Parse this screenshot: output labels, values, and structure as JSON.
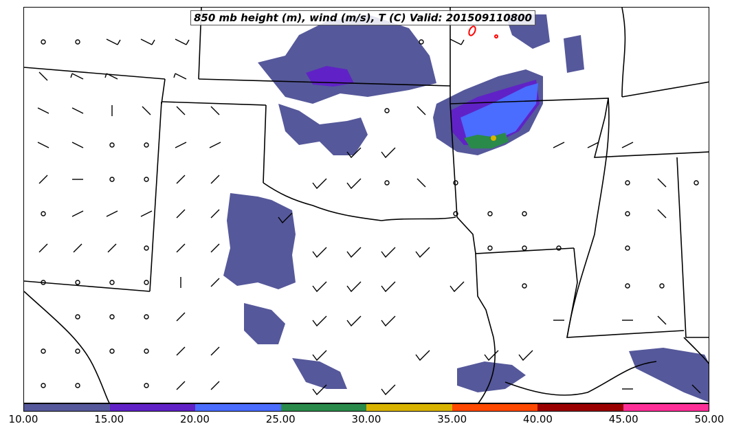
{
  "title": "850 mb height (m), wind (m/s), T (C) Valid: 201509110800",
  "colorbar": {
    "colors": [
      "#55589a",
      "#6022c6",
      "#4a6cff",
      "#2a8a4a",
      "#d8b300",
      "#ff4800",
      "#9a0000",
      "#ff2f98"
    ],
    "ticks": [
      "10.00",
      "15.00",
      "20.00",
      "25.00",
      "30.00",
      "35.00",
      "40.00",
      "45.00",
      "50.00"
    ]
  },
  "map_colors": {
    "boundary": "#000000",
    "precip_10": "#55589a",
    "precip_15": "#6022c6",
    "precip_20": "#4a6cff",
    "precip_25": "#2a8a4a",
    "precip_30": "#d8b300",
    "temp_contour": "#ff0000"
  }
}
